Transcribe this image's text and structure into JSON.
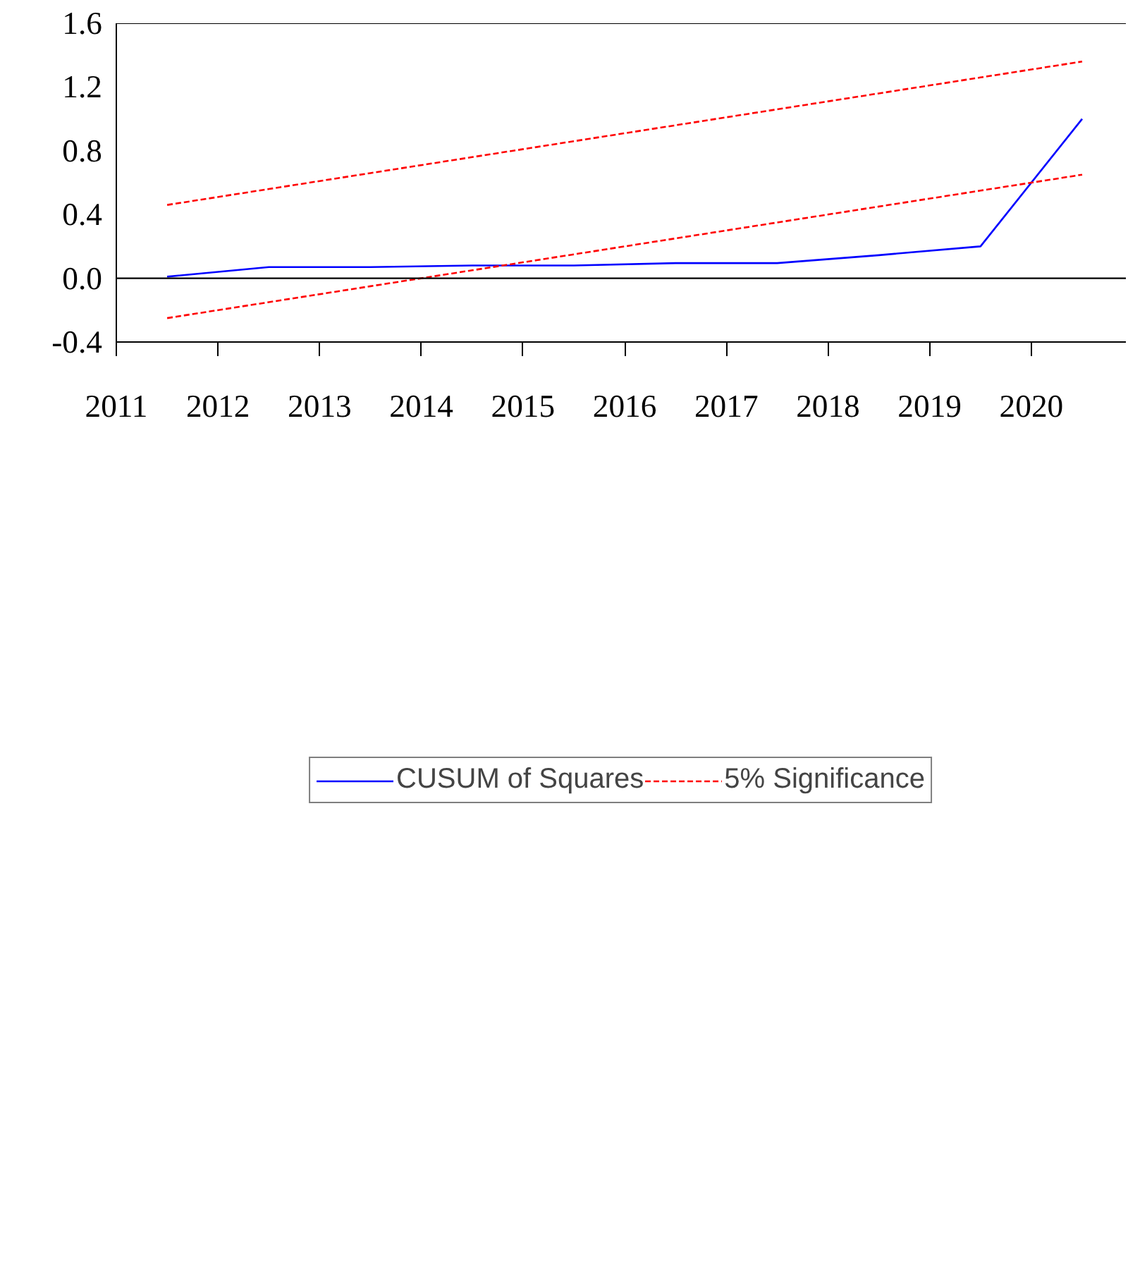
{
  "chart_data": {
    "type": "line",
    "x": [
      2011.5,
      2012.5,
      2013.5,
      2014.5,
      2015.5,
      2016.5,
      2017.5,
      2018.5,
      2019.5,
      2020.5
    ],
    "series": [
      {
        "name": "CUSUM of Squares",
        "color": "#0000ff",
        "line_style": "solid",
        "values": [
          0.01,
          0.07,
          0.07,
          0.08,
          0.08,
          0.095,
          0.095,
          0.145,
          0.2,
          1.0
        ]
      },
      {
        "name": "5% Significance",
        "color": "#ff0000",
        "line_style": "dashed",
        "values": [
          0.46,
          0.56,
          0.66,
          0.76,
          0.86,
          0.96,
          1.06,
          1.16,
          1.26,
          1.36
        ]
      },
      {
        "color": "#ff0000",
        "line_style": "dashed",
        "values": [
          -0.25,
          -0.15,
          -0.05,
          0.05,
          0.15,
          0.25,
          0.35,
          0.45,
          0.55,
          0.65
        ]
      }
    ],
    "xlim": [
      2011,
      2020.93
    ],
    "xticks": [
      2011,
      2012,
      2013,
      2014,
      2015,
      2016,
      2017,
      2018,
      2019,
      2020
    ],
    "ylim": [
      -0.4,
      1.6
    ],
    "yticks": [
      {
        "value": -0.4,
        "label": "-0.4"
      },
      {
        "value": 0,
        "label": "0.0"
      },
      {
        "value": 0.4,
        "label": "0.4"
      },
      {
        "value": 0.8,
        "label": "0.8"
      },
      {
        "value": 1.2,
        "label": "1.2"
      },
      {
        "value": 1.6,
        "label": "1.6"
      }
    ],
    "ref_lines": [
      {
        "axis": "y",
        "value": 0,
        "color": "#000000"
      }
    ],
    "grid": false,
    "legend": "bottom",
    "marker": "none"
  }
}
